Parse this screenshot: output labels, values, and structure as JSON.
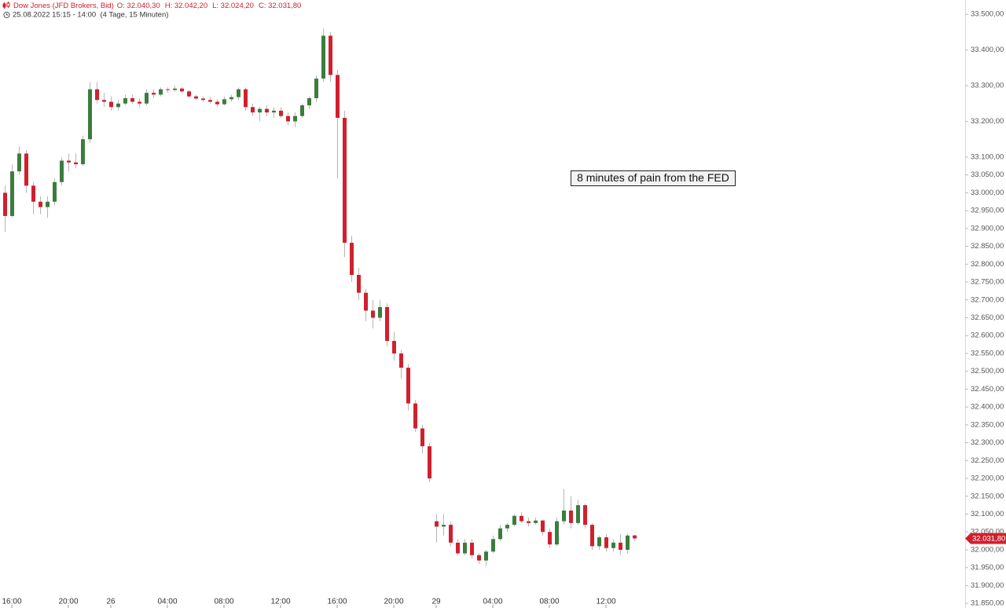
{
  "chart_data": {
    "type": "candlestick",
    "title": "Dow Jones (JFD Brokers, Bid)",
    "ohlc_labels": [
      "O: 32.040,30",
      "H: 32.042,20",
      "L: 32.024,20",
      "C: 32.031,80"
    ],
    "subtitle": "25.08.2022 15:15 - 14:00  (4 Tage, 15 Minuten)",
    "annotation": "8 minutes of pain from the FED",
    "colors": {
      "up": "#3b7d3e",
      "down": "#d0202e",
      "wick": "#b5b5b5"
    },
    "x": [
      null,
      "16:00",
      null,
      null,
      null,
      null,
      null,
      null,
      null,
      "20:00",
      null,
      null,
      null,
      null,
      null,
      "26",
      null,
      null,
      null,
      null,
      null,
      null,
      null,
      "04:00",
      null,
      null,
      null,
      null,
      null,
      null,
      null,
      "08:00",
      null,
      null,
      null,
      null,
      null,
      null,
      null,
      "12:00",
      null,
      null,
      null,
      null,
      null,
      null,
      null,
      "16:00",
      null,
      null,
      null,
      null,
      null,
      null,
      null,
      "20:00",
      null,
      null,
      null,
      null,
      null,
      "29",
      null,
      null,
      null,
      null,
      null,
      null,
      null,
      "04:00",
      null,
      null,
      null,
      null,
      null,
      null,
      null,
      "08:00",
      null,
      null,
      null,
      null,
      null,
      null,
      null,
      "12:00",
      null,
      null,
      null,
      null
    ],
    "open": [
      33000,
      32935,
      33060,
      33110,
      33020,
      32975,
      32960,
      32975,
      33030,
      33090,
      33085,
      33080,
      33150,
      33290,
      33260,
      33255,
      33240,
      33250,
      33265,
      33255,
      33250,
      33280,
      33275,
      33290,
      33288,
      33292,
      33284,
      33270,
      33264,
      33260,
      33255,
      33248,
      33262,
      33268,
      33290,
      33240,
      33225,
      33235,
      33225,
      33230,
      33215,
      33200,
      33215,
      33245,
      33265,
      33320,
      33440,
      33330,
      33210,
      32860,
      32770,
      32720,
      32670,
      32650,
      32680,
      32585,
      32550,
      32510,
      32410,
      32340,
      32290,
      32080,
      32065,
      32070,
      32020,
      31990,
      32020,
      31985,
      31970,
      31995,
      32030,
      32060,
      32070,
      32095,
      32080,
      32075,
      32082,
      32050,
      32015,
      32080,
      32110,
      32075,
      32125,
      32070,
      32010,
      32035,
      32005,
      32020,
      32000,
      32040.3
    ],
    "high": [
      33020,
      33080,
      33130,
      33120,
      33030,
      32990,
      32990,
      33040,
      33100,
      33110,
      33110,
      33160,
      33310,
      33310,
      33280,
      33270,
      33260,
      33275,
      33275,
      33265,
      33290,
      33290,
      33295,
      33295,
      33300,
      33297,
      33288,
      33275,
      33270,
      33268,
      33262,
      33270,
      33275,
      33295,
      33295,
      33250,
      33240,
      33245,
      33240,
      33240,
      33225,
      33225,
      33250,
      33270,
      33330,
      33460,
      33450,
      33345,
      33230,
      32880,
      32790,
      32730,
      32700,
      32700,
      32690,
      32610,
      32560,
      32520,
      32420,
      32350,
      32300,
      32100,
      32100,
      32080,
      32030,
      32030,
      32030,
      31990,
      32000,
      32040,
      32070,
      32075,
      32100,
      32105,
      32090,
      32090,
      32085,
      32060,
      32090,
      32170,
      32150,
      32140,
      32130,
      32075,
      32040,
      32045,
      32030,
      32045,
      32045,
      32042.2
    ],
    "low": [
      32890,
      32930,
      33050,
      33000,
      32940,
      32940,
      32930,
      32965,
      33020,
      33060,
      33070,
      33075,
      33140,
      33250,
      33240,
      33230,
      33230,
      33245,
      33250,
      33240,
      33245,
      33265,
      33270,
      33280,
      33283,
      33280,
      33265,
      33260,
      33255,
      33250,
      33240,
      33245,
      33255,
      33260,
      33230,
      33215,
      33200,
      33215,
      33210,
      33210,
      33190,
      33185,
      33210,
      33235,
      33255,
      33310,
      33310,
      33040,
      32820,
      32750,
      32700,
      32640,
      32620,
      32640,
      32570,
      32530,
      32480,
      32390,
      32330,
      32270,
      32190,
      32020,
      32040,
      32010,
      31985,
      31985,
      31975,
      31960,
      31955,
      31990,
      32025,
      32050,
      32065,
      32075,
      32065,
      32070,
      32040,
      32005,
      32010,
      32070,
      32060,
      32070,
      32060,
      32000,
      32000,
      31995,
      31995,
      31985,
      31990,
      32024.2
    ],
    "close": [
      32935,
      33060,
      33110,
      33020,
      32975,
      32960,
      32975,
      33030,
      33090,
      33085,
      33080,
      33150,
      33290,
      33260,
      33255,
      33240,
      33250,
      33265,
      33255,
      33250,
      33280,
      33275,
      33290,
      33288,
      33292,
      33284,
      33270,
      33264,
      33260,
      33255,
      33248,
      33262,
      33268,
      33290,
      33240,
      33225,
      33235,
      33225,
      33230,
      33215,
      33200,
      33215,
      33245,
      33265,
      33320,
      33440,
      33330,
      33210,
      32860,
      32770,
      32720,
      32670,
      32650,
      32680,
      32585,
      32550,
      32510,
      32410,
      32340,
      32290,
      32200,
      32065,
      32070,
      32020,
      31990,
      32020,
      31985,
      31970,
      31995,
      32030,
      32060,
      32070,
      32095,
      32080,
      32075,
      32082,
      32050,
      32015,
      32080,
      32110,
      32075,
      32125,
      32070,
      32010,
      32035,
      32005,
      32020,
      32000,
      32040,
      32031.8
    ],
    "current": {
      "value": 32031.8,
      "label": "32.031,80"
    },
    "ylim": [
      31837,
      33540
    ],
    "yticks": [
      {
        "value": 33500,
        "label": "33.500,00"
      },
      {
        "value": 33400,
        "label": "33.400,00"
      },
      {
        "value": 33300,
        "label": "33.300,00"
      },
      {
        "value": 33200,
        "label": "33.200,00"
      },
      {
        "value": 33100,
        "label": "33.100,00"
      },
      {
        "value": 33050,
        "label": "33.050,00"
      },
      {
        "value": 33000,
        "label": "33.000,00"
      },
      {
        "value": 32950,
        "label": "32.950,00"
      },
      {
        "value": 32900,
        "label": "32.900,00"
      },
      {
        "value": 32850,
        "label": "32.850,00"
      },
      {
        "value": 32800,
        "label": "32.800,00"
      },
      {
        "value": 32750,
        "label": "32.750,00"
      },
      {
        "value": 32700,
        "label": "32.700,00"
      },
      {
        "value": 32650,
        "label": "32.650,00"
      },
      {
        "value": 32600,
        "label": "32.600,00"
      },
      {
        "value": 32550,
        "label": "32.550,00"
      },
      {
        "value": 32500,
        "label": "32.500,00"
      },
      {
        "value": 32450,
        "label": "32.450,00"
      },
      {
        "value": 32400,
        "label": "32.400,00"
      },
      {
        "value": 32350,
        "label": "32.350,00"
      },
      {
        "value": 32300,
        "label": "32.300,00"
      },
      {
        "value": 32250,
        "label": "32.250,00"
      },
      {
        "value": 32200,
        "label": "32.200,00"
      },
      {
        "value": 32150,
        "label": "32.150,00"
      },
      {
        "value": 32100,
        "label": "32.100,00"
      },
      {
        "value": 32050,
        "label": "32.050,00"
      },
      {
        "value": 32000,
        "label": "32.000,00"
      },
      {
        "value": 31950,
        "label": "31.950,00"
      },
      {
        "value": 31900,
        "label": "31.900,00"
      },
      {
        "value": 31850,
        "label": "31.850,00"
      }
    ],
    "grid": false
  }
}
